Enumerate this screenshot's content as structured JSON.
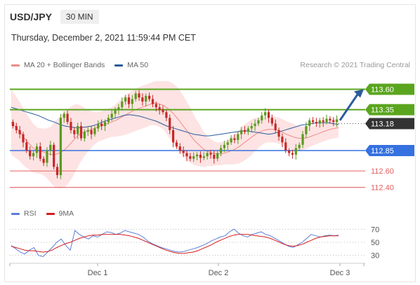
{
  "header": {
    "symbol": "USD/JPY",
    "timeframe": "30 MIN",
    "datetime": "Thursday, December 2, 2021 11:59:44 PM CET",
    "credit": "Research © 2021 Trading Central"
  },
  "legend_main": [
    {
      "label": "MA 20 + Bollinger Bands",
      "color": "#f08a8a"
    },
    {
      "label": "MA 50",
      "color": "#2b5a9b"
    }
  ],
  "legend_rsi": [
    {
      "label": "RSI",
      "color": "#5b7fd6"
    },
    {
      "label": "9MA",
      "color": "#d71d1d"
    }
  ],
  "colors": {
    "up": "#5a9a1e",
    "down": "#c62828",
    "bollinger_fill": "#fde3e3",
    "ma20": "#f08a8a",
    "ma50": "#2b5a9b",
    "resistance": "#5aa51e",
    "support": "#3571e0",
    "pivot_low": "#e36060",
    "arrow": "#2b5a9b",
    "current": "#333333"
  },
  "chart_data": [
    {
      "type": "candlestick",
      "title": "USD/JPY 30 MIN",
      "ylim": [
        112.25,
        113.75
      ],
      "x_ticks": [
        "Dec 1",
        "Dec 2",
        "Dec 3"
      ],
      "current_price": 113.18,
      "levels": [
        {
          "label": "113.60",
          "value": 113.6,
          "kind": "resistance"
        },
        {
          "label": "113.35",
          "value": 113.35,
          "kind": "resistance"
        },
        {
          "label": "113.18",
          "value": 113.18,
          "kind": "current"
        },
        {
          "label": "112.85",
          "value": 112.85,
          "kind": "support"
        },
        {
          "label": "112.60",
          "value": 112.6,
          "kind": "support-minor"
        },
        {
          "label": "112.40",
          "value": 112.4,
          "kind": "support-minor"
        }
      ],
      "projection": {
        "from": 113.22,
        "to": 113.6
      },
      "close": [
        113.15,
        113.1,
        113.05,
        112.95,
        112.85,
        112.78,
        112.82,
        112.9,
        112.75,
        112.7,
        112.85,
        112.92,
        112.65,
        112.55,
        113.25,
        113.3,
        113.2,
        113.1,
        113.05,
        113.15,
        113.0,
        113.08,
        113.1,
        113.05,
        113.12,
        113.18,
        113.15,
        113.2,
        113.25,
        113.3,
        113.35,
        113.38,
        113.45,
        113.5,
        113.42,
        113.48,
        113.55,
        113.5,
        113.45,
        113.52,
        113.48,
        113.42,
        113.38,
        113.35,
        113.32,
        113.25,
        113.1,
        112.95,
        112.9,
        112.85,
        112.82,
        112.78,
        112.75,
        112.78,
        112.8,
        112.76,
        112.78,
        112.82,
        112.8,
        112.75,
        112.82,
        112.88,
        112.92,
        112.95,
        113.0,
        112.98,
        113.05,
        113.1,
        113.08,
        113.12,
        113.15,
        113.18,
        113.22,
        113.28,
        113.32,
        113.25,
        113.18,
        113.1,
        113.02,
        112.95,
        112.85,
        112.82,
        112.8,
        112.88,
        112.92,
        113.05,
        113.15,
        113.22,
        113.2,
        113.18,
        113.22,
        113.2,
        113.24,
        113.22,
        113.2,
        113.23
      ],
      "ma20": [
        113.2,
        113.14,
        113.08,
        113.0,
        112.94,
        112.88,
        112.85,
        112.84,
        112.82,
        112.8,
        112.8,
        112.82,
        112.85,
        112.9,
        112.96,
        113.02,
        113.06,
        113.08,
        113.1,
        113.12,
        113.14,
        113.16,
        113.18,
        113.2,
        113.22,
        113.25,
        113.28,
        113.31,
        113.34,
        113.36,
        113.38,
        113.4,
        113.42,
        113.43,
        113.42,
        113.4,
        113.36,
        113.31,
        113.25,
        113.18,
        113.11,
        113.04,
        112.97,
        112.92,
        112.87,
        112.84,
        112.82,
        112.81,
        112.81,
        112.82,
        112.84,
        112.86,
        112.89,
        112.93,
        112.97,
        113.01,
        113.05,
        113.08,
        113.1,
        113.11,
        113.11,
        113.1,
        113.08,
        113.05,
        113.03,
        113.01,
        113.0,
        113.0,
        113.01,
        113.03,
        113.05,
        113.07,
        113.09,
        113.11,
        113.12,
        113.13
      ],
      "ma50": [
        113.38,
        113.36,
        113.34,
        113.32,
        113.3,
        113.28,
        113.25,
        113.22,
        113.2,
        113.17,
        113.15,
        113.14,
        113.13,
        113.13,
        113.14,
        113.15,
        113.17,
        113.2,
        113.22,
        113.24,
        113.26,
        113.28,
        113.29,
        113.28,
        113.27,
        113.25,
        113.23,
        113.21,
        113.18,
        113.15,
        113.13,
        113.11,
        113.09,
        113.07,
        113.05,
        113.04,
        113.03,
        113.03,
        113.04,
        113.05,
        113.06,
        113.07,
        113.08,
        113.09,
        113.09,
        113.08,
        113.07,
        113.06,
        113.05,
        113.06,
        113.08,
        113.1,
        113.12,
        113.14,
        113.16,
        113.17,
        113.18,
        113.19,
        113.19,
        113.19,
        113.18,
        113.17
      ]
    },
    {
      "type": "line",
      "title": "RSI",
      "ylim": [
        20,
        80
      ],
      "y_ticks": [
        70,
        50,
        30
      ],
      "series": [
        {
          "name": "RSI",
          "values": [
            45,
            40,
            35,
            32,
            38,
            42,
            30,
            28,
            35,
            42,
            50,
            55,
            45,
            38,
            68,
            62,
            58,
            55,
            60,
            58,
            62,
            66,
            65,
            62,
            64,
            68,
            66,
            64,
            62,
            58,
            52,
            48,
            45,
            42,
            40,
            38,
            36,
            35,
            36,
            38,
            40,
            42,
            45,
            48,
            52,
            55,
            58,
            60,
            66,
            70,
            64,
            60,
            58,
            62,
            64,
            66,
            62,
            60,
            56,
            52,
            48,
            44,
            42,
            46,
            50,
            56,
            62,
            60,
            58,
            60,
            61,
            60,
            61
          ]
        },
        {
          "name": "9MA",
          "values": [
            44,
            42,
            40,
            38,
            37,
            37,
            36,
            35,
            36,
            38,
            42,
            45,
            48,
            50,
            53,
            56,
            58,
            60,
            61,
            61,
            62,
            62,
            62,
            62,
            62,
            61,
            60,
            58,
            56,
            53,
            50,
            47,
            44,
            41,
            38,
            36,
            34,
            33,
            33,
            34,
            35,
            37,
            40,
            43,
            46,
            50,
            53,
            56,
            59,
            61,
            62,
            62,
            62,
            61,
            60,
            59,
            58,
            56,
            53,
            50,
            47,
            45,
            44,
            45,
            47,
            50,
            53,
            56,
            58,
            59,
            60,
            60,
            60
          ]
        }
      ]
    }
  ]
}
